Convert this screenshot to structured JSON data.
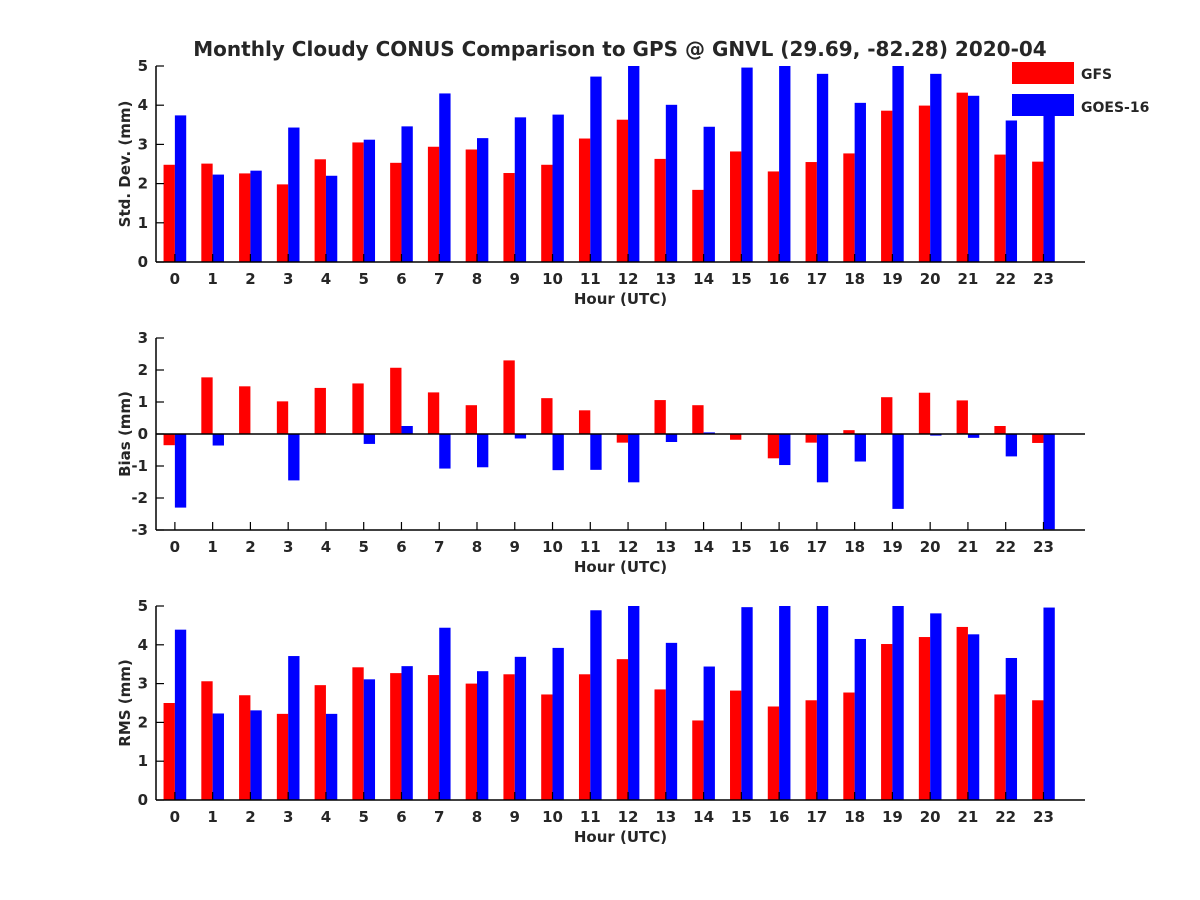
{
  "figure_title": "Monthly Cloudy CONUS Comparison to GPS @ GNVL (29.69, -82.28) 2020-04",
  "legend": [
    {
      "name": "GFS",
      "color": "#ff0000"
    },
    {
      "name": "GOES-16",
      "color": "#0000ff"
    }
  ],
  "chart_data": [
    {
      "type": "bar",
      "xlabel": "Hour (UTC)",
      "ylabel": "Std. Dev. (mm)",
      "ylim": [
        0,
        5
      ],
      "yticks": [
        0,
        1,
        2,
        3,
        4,
        5
      ],
      "categories": [
        "0",
        "1",
        "2",
        "3",
        "4",
        "5",
        "6",
        "7",
        "8",
        "9",
        "10",
        "11",
        "12",
        "13",
        "14",
        "15",
        "16",
        "17",
        "18",
        "19",
        "20",
        "21",
        "22",
        "23"
      ],
      "series": [
        {
          "name": "GFS",
          "color": "#ff0000",
          "values": [
            2.48,
            2.51,
            2.26,
            1.98,
            2.62,
            3.05,
            2.53,
            2.94,
            2.87,
            2.27,
            2.48,
            3.15,
            3.63,
            2.63,
            1.84,
            2.82,
            2.31,
            2.55,
            2.77,
            3.86,
            3.99,
            4.32,
            2.74,
            2.56
          ]
        },
        {
          "name": "GOES-16",
          "color": "#0000ff",
          "values": [
            3.74,
            2.23,
            2.33,
            3.43,
            2.2,
            3.12,
            3.46,
            4.3,
            3.16,
            3.69,
            3.76,
            4.73,
            5.0,
            4.01,
            3.45,
            4.96,
            5.0,
            4.8,
            4.06,
            5.0,
            4.8,
            4.24,
            3.61,
            3.74
          ]
        }
      ]
    },
    {
      "type": "bar",
      "xlabel": "Hour (UTC)",
      "ylabel": "Bias (mm)",
      "ylim": [
        -3,
        3
      ],
      "yticks": [
        -3,
        -2,
        -1,
        0,
        1,
        2,
        3
      ],
      "categories": [
        "0",
        "1",
        "2",
        "3",
        "4",
        "5",
        "6",
        "7",
        "8",
        "9",
        "10",
        "11",
        "12",
        "13",
        "14",
        "15",
        "16",
        "17",
        "18",
        "19",
        "20",
        "21",
        "22",
        "23"
      ],
      "series": [
        {
          "name": "GFS",
          "color": "#ff0000",
          "values": [
            -0.35,
            1.77,
            1.49,
            1.02,
            1.44,
            1.58,
            2.07,
            1.3,
            0.9,
            2.3,
            1.12,
            0.74,
            -0.27,
            1.06,
            0.9,
            -0.18,
            -0.76,
            -0.27,
            0.12,
            1.15,
            1.29,
            1.05,
            0.25,
            -0.28
          ]
        },
        {
          "name": "GOES-16",
          "color": "#0000ff",
          "values": [
            -2.3,
            -0.36,
            0,
            -1.45,
            0,
            -0.31,
            0.25,
            -1.08,
            -1.04,
            -0.14,
            -1.13,
            -1.12,
            -1.51,
            -0.25,
            0.05,
            0,
            -0.97,
            -1.51,
            -0.86,
            -2.34,
            -0.05,
            -0.12,
            -0.7,
            -2.98
          ]
        }
      ]
    },
    {
      "type": "bar",
      "xlabel": "Hour (UTC)",
      "ylabel": "RMS (mm)",
      "ylim": [
        0,
        5
      ],
      "yticks": [
        0,
        1,
        2,
        3,
        4,
        5
      ],
      "categories": [
        "0",
        "1",
        "2",
        "3",
        "4",
        "5",
        "6",
        "7",
        "8",
        "9",
        "10",
        "11",
        "12",
        "13",
        "14",
        "15",
        "16",
        "17",
        "18",
        "19",
        "20",
        "21",
        "22",
        "23"
      ],
      "series": [
        {
          "name": "GFS",
          "color": "#ff0000",
          "values": [
            2.5,
            3.06,
            2.7,
            2.22,
            2.96,
            3.42,
            3.27,
            3.22,
            3.0,
            3.24,
            2.72,
            3.24,
            3.63,
            2.85,
            2.05,
            2.82,
            2.41,
            2.57,
            2.77,
            4.02,
            4.2,
            4.46,
            2.72,
            2.57
          ]
        },
        {
          "name": "GOES-16",
          "color": "#0000ff",
          "values": [
            4.39,
            2.23,
            2.31,
            3.71,
            2.22,
            3.11,
            3.45,
            4.44,
            3.32,
            3.69,
            3.92,
            4.89,
            5.0,
            4.05,
            3.44,
            4.97,
            5.0,
            5.0,
            4.15,
            5.0,
            4.81,
            4.27,
            3.66,
            4.96
          ]
        }
      ]
    }
  ]
}
